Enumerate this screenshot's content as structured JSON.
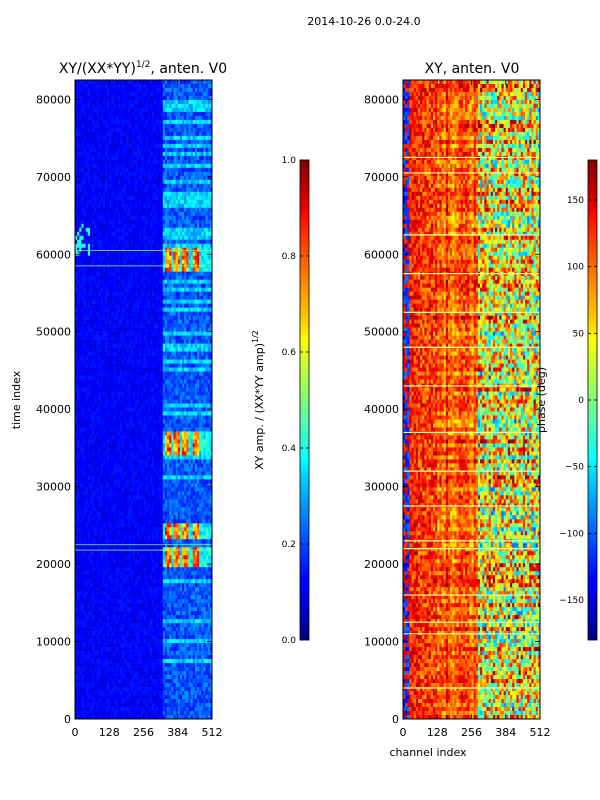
{
  "figure": {
    "suptitle": "2014-10-26 0.0-24.0"
  },
  "colormap": "jet",
  "chart_data": [
    {
      "type": "heatmap",
      "title_main": "XY/(XX*YY)",
      "title_exp": "1/2",
      "title_suffix": ", anten. V0",
      "xlabel": "",
      "ylabel": "time index",
      "xlim": [
        0,
        512
      ],
      "ylim": [
        0,
        82500
      ],
      "xticks": [
        0,
        128,
        256,
        384,
        512
      ],
      "yticks": [
        0,
        10000,
        20000,
        30000,
        40000,
        50000,
        60000,
        70000,
        80000
      ],
      "colorbar": {
        "label_main": "XY amp. / (XX*YY amp)",
        "label_exp": "1/2",
        "range": [
          0.0,
          1.0
        ],
        "ticks": [
          "0.0",
          "0.2",
          "0.4",
          "0.6",
          "0.8",
          "1.0"
        ]
      },
      "features": {
        "background_value": 0.12,
        "active_channels": [
          330,
          512
        ],
        "hot_bands_time": [
          [
            58000,
            61000
          ],
          [
            34000,
            37000
          ],
          [
            23000,
            25500
          ],
          [
            19500,
            22000
          ]
        ],
        "hot_channels": [
          [
            340,
            360
          ],
          [
            370,
            392
          ],
          [
            400,
            424
          ],
          [
            440,
            460
          ]
        ]
      }
    },
    {
      "type": "heatmap",
      "title_main": "XY, anten. V0",
      "title_exp": "",
      "title_suffix": "",
      "xlabel": "channel index",
      "ylabel": "",
      "xlim": [
        0,
        512
      ],
      "ylim": [
        0,
        82500
      ],
      "xticks": [
        0,
        128,
        256,
        384,
        512
      ],
      "yticks": [
        0,
        10000,
        20000,
        30000,
        40000,
        50000,
        60000,
        70000,
        80000
      ],
      "colorbar": {
        "label_main": "phase (deg)",
        "label_exp": "",
        "range": [
          -180,
          180
        ],
        "ticks": [
          "−150",
          "−100",
          "−50",
          "0",
          "50",
          "100",
          "150"
        ]
      },
      "features": {
        "horizontal_lines_time": [
          72500,
          70500,
          62500,
          57500,
          52500,
          48000,
          43000,
          37000,
          32000,
          27500,
          23000,
          22000,
          16000,
          12500,
          11000,
          4000
        ]
      }
    }
  ]
}
